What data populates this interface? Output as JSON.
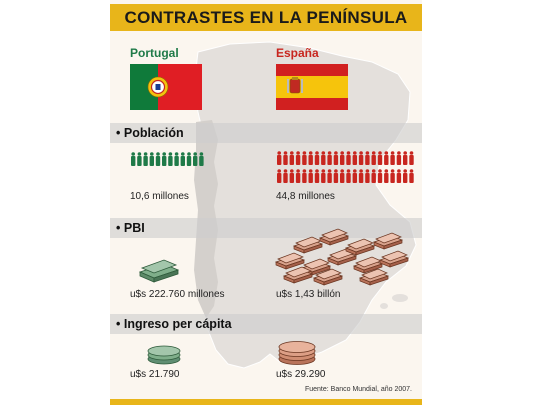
{
  "title": "CONTRASTES EN LA PENÍNSULA",
  "countries": [
    {
      "name": "Portugal",
      "color": "#1f7a48"
    },
    {
      "name": "España",
      "color": "#c8261f"
    }
  ],
  "sections": {
    "poblacion": {
      "label": "Población",
      "portugal_value": "10,6 millones",
      "espana_value": "44,8 millones"
    },
    "pbi": {
      "label": "PBI",
      "portugal_value": "u$s 222.760 millones",
      "espana_value": "u$s 1,43 billón"
    },
    "ingreso": {
      "label": "Ingreso per cápita",
      "portugal_value": "u$s 21.790",
      "espana_value": "u$s 29.290"
    }
  },
  "source": "Fuente: Banco Mundial, año 2007.",
  "colors": {
    "accent": "#e8b51a",
    "portugal": "#1f7a48",
    "espana": "#c8261f",
    "map": "#e3dfdb"
  },
  "icons": [
    "portugal-flag-icon",
    "spain-flag-icon",
    "people-icon",
    "banknote-stack-icon",
    "coin-stack-icon"
  ]
}
